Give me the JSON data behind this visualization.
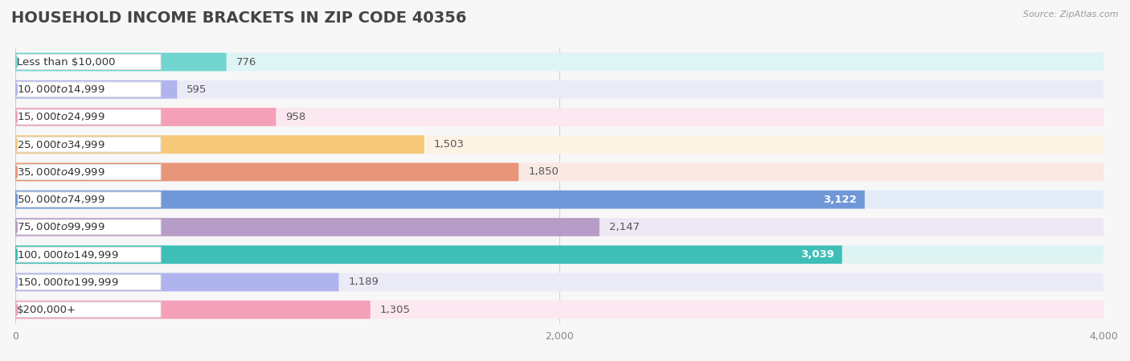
{
  "title": "HOUSEHOLD INCOME BRACKETS IN ZIP CODE 40356",
  "source": "Source: ZipAtlas.com",
  "categories": [
    "Less than $10,000",
    "$10,000 to $14,999",
    "$15,000 to $24,999",
    "$25,000 to $34,999",
    "$35,000 to $49,999",
    "$50,000 to $74,999",
    "$75,000 to $99,999",
    "$100,000 to $149,999",
    "$150,000 to $199,999",
    "$200,000+"
  ],
  "values": [
    776,
    595,
    958,
    1503,
    1850,
    3122,
    2147,
    3039,
    1189,
    1305
  ],
  "bar_colors": [
    "#72d5d0",
    "#b0b4ee",
    "#f4a0b8",
    "#f5c87a",
    "#e8957a",
    "#7098d8",
    "#b89cc8",
    "#3dbfb8",
    "#b0b4ee",
    "#f4a0b8"
  ],
  "bar_bg_colors": [
    "#dff4f4",
    "#ebebf8",
    "#fce8f0",
    "#fdf3e4",
    "#fae8e4",
    "#e4ecf8",
    "#ede8f4",
    "#ddf4f2",
    "#ebebf8",
    "#fce8f0"
  ],
  "label_inside": [
    false,
    false,
    false,
    false,
    false,
    true,
    false,
    true,
    false,
    false
  ],
  "xlim": [
    0,
    4000
  ],
  "xticks": [
    0,
    2000,
    4000
  ],
  "background_color": "#f7f7f7",
  "title_fontsize": 14,
  "bar_height": 0.65,
  "value_fontsize": 9.5,
  "label_fontsize": 9.5
}
